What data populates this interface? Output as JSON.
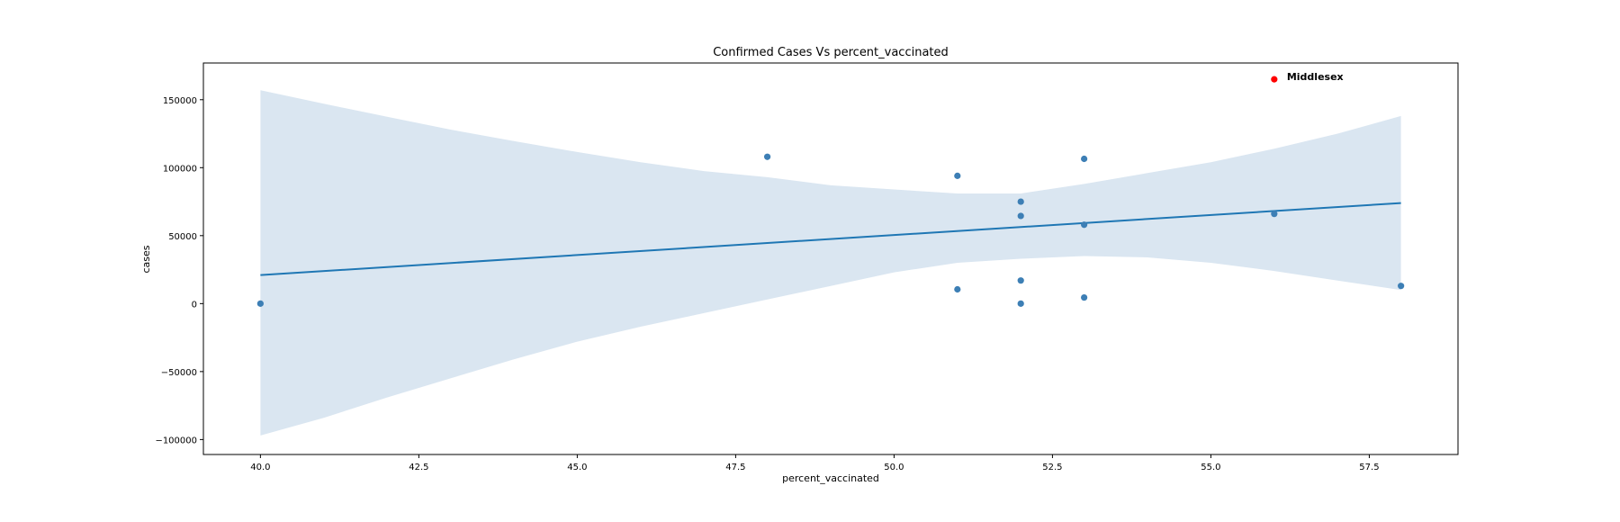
{
  "chart_data": {
    "type": "scatter",
    "title": "Confirmed Cases Vs percent_vaccinated",
    "xlabel": "percent_vaccinated",
    "ylabel": "cases",
    "xlim": [
      39.1,
      58.9
    ],
    "ylim": [
      -111000,
      177000
    ],
    "xticks": [
      40.0,
      42.5,
      45.0,
      47.5,
      50.0,
      52.5,
      55.0,
      57.5
    ],
    "xtick_labels": [
      "40.0",
      "42.5",
      "45.0",
      "47.5",
      "50.0",
      "52.5",
      "55.0",
      "57.5"
    ],
    "yticks": [
      -100000,
      -50000,
      0,
      50000,
      100000,
      150000
    ],
    "ytick_labels": [
      "−100000",
      "−50000",
      "0",
      "50000",
      "100000",
      "150000"
    ],
    "grid": false,
    "points": [
      {
        "x": 40,
        "y": 0
      },
      {
        "x": 48,
        "y": 108000
      },
      {
        "x": 51,
        "y": 94000
      },
      {
        "x": 51,
        "y": 10500
      },
      {
        "x": 52,
        "y": 75000
      },
      {
        "x": 52,
        "y": 64500
      },
      {
        "x": 52,
        "y": 17000
      },
      {
        "x": 52,
        "y": 0
      },
      {
        "x": 53,
        "y": 106500
      },
      {
        "x": 53,
        "y": 58000
      },
      {
        "x": 53,
        "y": 4500
      },
      {
        "x": 56,
        "y": 66000
      },
      {
        "x": 58,
        "y": 13000
      }
    ],
    "highlight": {
      "x": 56,
      "y": 165000,
      "label": "Middlesex",
      "color": "#ff0000"
    },
    "regression_line": {
      "x": [
        40,
        58
      ],
      "y": [
        21000,
        74000
      ]
    },
    "confidence_band": {
      "x": [
        40,
        41,
        42,
        43,
        44,
        45,
        46,
        47,
        48,
        49,
        50,
        51,
        52,
        53,
        54,
        55,
        56,
        57,
        58
      ],
      "upper": [
        157000,
        147000,
        137500,
        128000,
        119500,
        111500,
        104000,
        97500,
        93000,
        87000,
        84000,
        81000,
        81000,
        88000,
        96000,
        104000,
        114000,
        125000,
        138000
      ],
      "lower": [
        -97000,
        -84000,
        -69000,
        -55000,
        -41000,
        -28000,
        -17000,
        -7000,
        3000,
        13000,
        23000,
        30000,
        33000,
        35000,
        34000,
        30000,
        24000,
        17000,
        10000
      ]
    },
    "colors": {
      "points": "#3d7fb5",
      "line": "#1f77b4",
      "band": "#dae6f1",
      "highlight": "#ff0000"
    }
  }
}
